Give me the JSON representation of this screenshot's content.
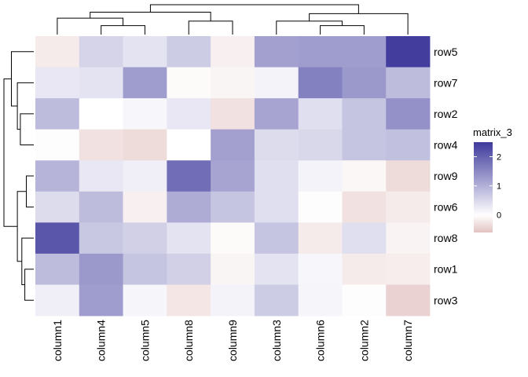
{
  "chart_data": {
    "type": "heatmap",
    "title": "",
    "rows": [
      "row5",
      "row7",
      "row2",
      "row4",
      "row9",
      "row6",
      "row8",
      "row1",
      "row3"
    ],
    "columns": [
      "column1",
      "column4",
      "column5",
      "column8",
      "column9",
      "column3",
      "column6",
      "column2",
      "column7"
    ],
    "values": [
      [
        -0.2,
        0.55,
        0.35,
        0.65,
        -0.15,
        1.2,
        1.25,
        1.25,
        2.45
      ],
      [
        0.3,
        0.35,
        1.25,
        -0.05,
        -0.1,
        0.15,
        1.6,
        1.3,
        0.85
      ],
      [
        0.85,
        0.0,
        0.1,
        0.3,
        -0.3,
        1.15,
        0.4,
        0.75,
        1.4
      ],
      [
        -0.02,
        -0.3,
        -0.35,
        0.0,
        1.2,
        0.45,
        0.5,
        0.75,
        0.8
      ],
      [
        0.95,
        0.3,
        0.2,
        1.85,
        1.15,
        0.4,
        0.15,
        -0.08,
        -0.35
      ],
      [
        0.45,
        0.85,
        -0.15,
        1.05,
        0.75,
        0.4,
        -0.02,
        -0.3,
        -0.2
      ],
      [
        2.15,
        0.7,
        0.6,
        0.35,
        -0.05,
        0.75,
        -0.2,
        0.4,
        -0.12
      ],
      [
        0.85,
        1.3,
        0.75,
        0.6,
        -0.1,
        0.35,
        0.1,
        -0.2,
        -0.18
      ],
      [
        0.2,
        1.25,
        0.12,
        -0.25,
        0.15,
        0.65,
        0.12,
        -0.02,
        -0.45
      ]
    ],
    "color_scale": {
      "low_value": -0.6,
      "mid_value": 0,
      "high_value": 2.5,
      "low_color": "#E2C3C1",
      "mid_color": "#FFFFFF",
      "high_color": "#3F3A9C"
    },
    "legend": {
      "title": "matrix_3",
      "ticks": [
        {
          "value": 2,
          "label": "2"
        },
        {
          "value": 1,
          "label": "1"
        },
        {
          "value": 0,
          "label": "0"
        }
      ],
      "range": [
        -0.6,
        2.5
      ],
      "placement": "right"
    },
    "row_dendrogram": {
      "leaf_order": [
        "row5",
        "row7",
        "row2",
        "row4",
        "row9",
        "row6",
        "row8",
        "row1",
        "row3"
      ],
      "merges": [
        {
          "children": [
            "row2",
            "row4"
          ],
          "height": 0.45
        },
        {
          "children": [
            "row7",
            "m0"
          ],
          "height": 0.55
        },
        {
          "children": [
            "row5",
            "m1"
          ],
          "height": 0.75
        },
        {
          "children": [
            "row9",
            "row6"
          ],
          "height": 0.25
        },
        {
          "children": [
            "row1",
            "row3"
          ],
          "height": 0.3
        },
        {
          "children": [
            "row8",
            "m4"
          ],
          "height": 0.4
        },
        {
          "children": [
            "m3",
            "m5"
          ],
          "height": 0.55
        },
        {
          "children": [
            "m2",
            "m6"
          ],
          "height": 1.0
        }
      ]
    },
    "column_dendrogram": {
      "leaf_order": [
        "column1",
        "column4",
        "column5",
        "column8",
        "column9",
        "column3",
        "column6",
        "column2",
        "column7"
      ],
      "merges": [
        {
          "children": [
            "column4",
            "column5"
          ],
          "height": 0.3
        },
        {
          "children": [
            "column1",
            "m0"
          ],
          "height": 0.55
        },
        {
          "children": [
            "column8",
            "column9"
          ],
          "height": 0.45
        },
        {
          "children": [
            "m1",
            "m2"
          ],
          "height": 0.75
        },
        {
          "children": [
            "column6",
            "column2"
          ],
          "height": 0.3
        },
        {
          "children": [
            "column3",
            "m4"
          ],
          "height": 0.45
        },
        {
          "children": [
            "m5",
            "column7"
          ],
          "height": 0.7
        },
        {
          "children": [
            "m3",
            "m6"
          ],
          "height": 1.0
        }
      ]
    }
  }
}
